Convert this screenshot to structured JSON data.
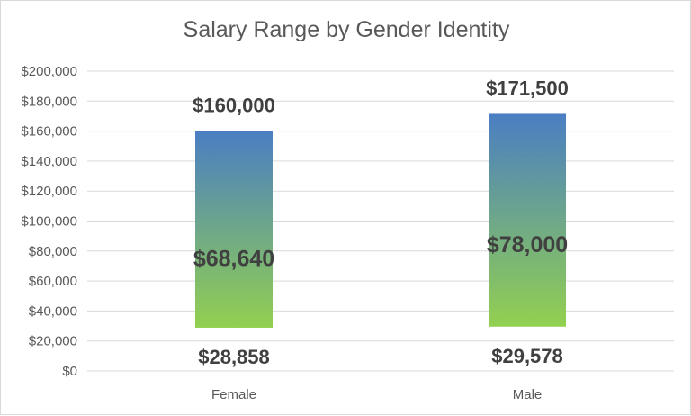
{
  "chart_data": {
    "type": "bar",
    "title": "Salary Range by Gender Identity",
    "categories": [
      "Female",
      "Male"
    ],
    "series": [
      {
        "values": [
          28858,
          29578
        ]
      },
      {
        "values": [
          160000,
          171500
        ]
      }
    ],
    "median": [
      68640,
      78000
    ],
    "labels": {
      "min": [
        "$28,858",
        "$29,578"
      ],
      "median": [
        "$68,640",
        "$78,000"
      ],
      "max": [
        "$160,000",
        "$171,500"
      ]
    },
    "y_ticks": [
      "$0",
      "$20,000",
      "$40,000",
      "$60,000",
      "$80,000",
      "$100,000",
      "$120,000",
      "$140,000",
      "$160,000",
      "$180,000",
      "$200,000"
    ],
    "ylim": [
      0,
      200000
    ],
    "xlabel": "",
    "ylabel": "",
    "grid": true,
    "legend": "none",
    "colors": {
      "bar_top": "#4a7ec3",
      "bar_bottom": "#92d050",
      "grid": "#d9d9d9",
      "text": "#595959",
      "label": "#404040"
    }
  }
}
